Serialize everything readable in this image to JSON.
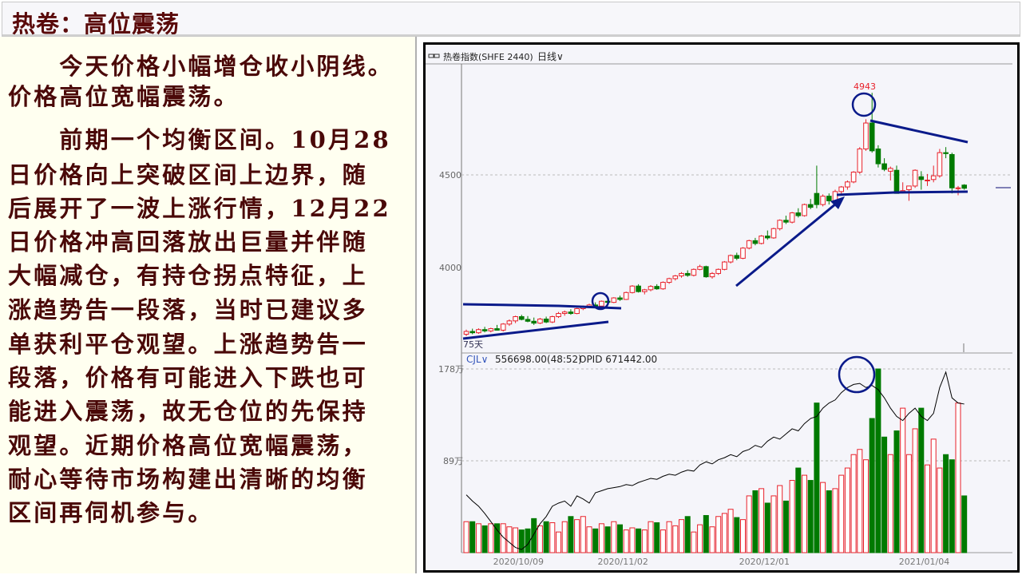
{
  "title": "热卷：高位震荡",
  "paragraphs": [
    {
      "lines": [
        "　　今天价格小幅增仓收小阴线。",
        "价格高位宽幅震荡。"
      ]
    },
    {
      "lines": [
        "　　前期一个均衡区间。10月28",
        "日价格向上突破区间上边界，随",
        "后展开了一波上涨行情，12月22",
        "日价格冲高回落放出巨量并伴随",
        "大幅减仓，有持仓拐点特征，上",
        "涨趋势告一段落，当时已建议多",
        "单获利平仓观望。上涨趋势告一",
        "段落，价格有可能进入下跌也可",
        "能进入震荡，故无仓位的先保持",
        "观望。近期价格高位宽幅震荡，",
        "耐心等待市场构建出清晰的均衡",
        "区间再伺机参与。"
      ]
    }
  ],
  "chart_header": {
    "icon": "link-icon",
    "symbol": "热卷指数(SHFE 2440)",
    "period": "日线∨"
  },
  "volume_header": {
    "indicator": "CJL∨",
    "value": "556698.00(48:52)",
    "opid": "OPID 671442.00"
  },
  "colors": {
    "up": "#e8202a",
    "down": "#007a00",
    "annotation": "#0a1a8a",
    "oi_line": "#000000"
  },
  "chart_data": {
    "type": "candlestick",
    "price_axis": {
      "ticks": [
        {
          "value": 4500,
          "label": "4500"
        },
        {
          "value": 4000,
          "label": "4000"
        }
      ],
      "grid": "dashed at 4500"
    },
    "volume_axis": {
      "ticks": [
        {
          "value": 178,
          "label": "178万"
        },
        {
          "value": 89,
          "label": "89万"
        }
      ],
      "unit": "万"
    },
    "peak_label": "4943",
    "ma_label": "75天",
    "date_labels": [
      {
        "index": 8,
        "label": "2020/10/09"
      },
      {
        "index": 25,
        "label": "2020/11/02"
      },
      {
        "index": 48,
        "label": "2020/12/01"
      },
      {
        "index": 74,
        "label": "2021/01/04"
      }
    ],
    "ohlc": [
      [
        3640,
        3665,
        3630,
        3655
      ],
      [
        3655,
        3670,
        3640,
        3648
      ],
      [
        3648,
        3672,
        3642,
        3665
      ],
      [
        3665,
        3680,
        3650,
        3658
      ],
      [
        3658,
        3675,
        3650,
        3670
      ],
      [
        3670,
        3690,
        3660,
        3662
      ],
      [
        3662,
        3700,
        3655,
        3695
      ],
      [
        3695,
        3720,
        3685,
        3712
      ],
      [
        3712,
        3740,
        3700,
        3735
      ],
      [
        3735,
        3745,
        3715,
        3720
      ],
      [
        3720,
        3738,
        3705,
        3710
      ],
      [
        3710,
        3730,
        3690,
        3700
      ],
      [
        3700,
        3728,
        3695,
        3722
      ],
      [
        3722,
        3735,
        3700,
        3706
      ],
      [
        3706,
        3740,
        3700,
        3735
      ],
      [
        3735,
        3760,
        3728,
        3752
      ],
      [
        3752,
        3768,
        3740,
        3760
      ],
      [
        3760,
        3775,
        3745,
        3752
      ],
      [
        3752,
        3782,
        3748,
        3778
      ],
      [
        3778,
        3795,
        3770,
        3790
      ],
      [
        3790,
        3805,
        3780,
        3798
      ],
      [
        3798,
        3812,
        3785,
        3792
      ],
      [
        3792,
        3822,
        3788,
        3818
      ],
      [
        3818,
        3828,
        3805,
        3812
      ],
      [
        3812,
        3840,
        3808,
        3836
      ],
      [
        3836,
        3848,
        3820,
        3828
      ],
      [
        3828,
        3870,
        3825,
        3865
      ],
      [
        3865,
        3905,
        3860,
        3900
      ],
      [
        3900,
        3910,
        3865,
        3870
      ],
      [
        3870,
        3885,
        3855,
        3880
      ],
      [
        3880,
        3905,
        3872,
        3898
      ],
      [
        3898,
        3910,
        3880,
        3885
      ],
      [
        3885,
        3925,
        3880,
        3920
      ],
      [
        3920,
        3945,
        3912,
        3940
      ],
      [
        3940,
        3960,
        3930,
        3955
      ],
      [
        3955,
        3975,
        3945,
        3968
      ],
      [
        3968,
        3985,
        3950,
        3958
      ],
      [
        3958,
        3995,
        3952,
        3990
      ],
      [
        3990,
        4015,
        3985,
        4005
      ],
      [
        4005,
        4010,
        3945,
        3950
      ],
      [
        3950,
        3975,
        3940,
        3968
      ],
      [
        3968,
        3995,
        3960,
        3990
      ],
      [
        3990,
        4035,
        3985,
        4030
      ],
      [
        4030,
        4070,
        4022,
        4065
      ],
      [
        4065,
        4080,
        4040,
        4050
      ],
      [
        4050,
        4110,
        4045,
        4105
      ],
      [
        4105,
        4150,
        4098,
        4145
      ],
      [
        4145,
        4160,
        4120,
        4130
      ],
      [
        4130,
        4175,
        4125,
        4170
      ],
      [
        4170,
        4200,
        4150,
        4160
      ],
      [
        4160,
        4215,
        4155,
        4210
      ],
      [
        4210,
        4260,
        4200,
        4255
      ],
      [
        4255,
        4280,
        4235,
        4245
      ],
      [
        4245,
        4300,
        4238,
        4295
      ],
      [
        4295,
        4320,
        4270,
        4280
      ],
      [
        4280,
        4345,
        4275,
        4340
      ],
      [
        4340,
        4370,
        4315,
        4325
      ],
      [
        4400,
        4550,
        4320,
        4340
      ],
      [
        4340,
        4395,
        4330,
        4385
      ],
      [
        4385,
        4400,
        4340,
        4360
      ],
      [
        4360,
        4420,
        4350,
        4410
      ],
      [
        4410,
        4440,
        4395,
        4435
      ],
      [
        4435,
        4470,
        4420,
        4462
      ],
      [
        4462,
        4520,
        4455,
        4515
      ],
      [
        4515,
        4650,
        4505,
        4640
      ],
      [
        4640,
        4800,
        4630,
        4780
      ],
      [
        4780,
        4943,
        4620,
        4630
      ],
      [
        4640,
        4660,
        4540,
        4560
      ],
      [
        4560,
        4590,
        4520,
        4530
      ],
      [
        4520,
        4545,
        4470,
        4535
      ],
      [
        4525,
        4550,
        4400,
        4400
      ],
      [
        4410,
        4460,
        4400,
        4415
      ],
      [
        4420,
        4440,
        4360,
        4440
      ],
      [
        4440,
        4530,
        4430,
        4525
      ],
      [
        4490,
        4520,
        4420,
        4475
      ],
      [
        4470,
        4505,
        4440,
        4472
      ],
      [
        4475,
        4550,
        4460,
        4495
      ],
      [
        4495,
        4640,
        4485,
        4620
      ],
      [
        4620,
        4650,
        4590,
        4615
      ],
      [
        4610,
        4620,
        4400,
        4430
      ],
      [
        4430,
        4440,
        4390,
        4430
      ],
      [
        4445,
        4450,
        4420,
        4428
      ]
    ],
    "volume": [
      30,
      30,
      28,
      26,
      28,
      28,
      28,
      25,
      24,
      22,
      23,
      33,
      26,
      30,
      29,
      20,
      30,
      35,
      32,
      35,
      25,
      23,
      28,
      25,
      30,
      27,
      22,
      24,
      23,
      22,
      30,
      29,
      22,
      30,
      26,
      32,
      35,
      20,
      27,
      36,
      25,
      35,
      38,
      42,
      34,
      32,
      55,
      60,
      62,
      48,
      55,
      65,
      50,
      70,
      82,
      75,
      70,
      145,
      68,
      60,
      62,
      75,
      82,
      95,
      100,
      90,
      130,
      178,
      112,
      95,
      118,
      140,
      95,
      120,
      140,
      85,
      110,
      82,
      95,
      90,
      145,
      55
    ],
    "open_interest": [
      56,
      50,
      45,
      38,
      30,
      22,
      15,
      10,
      5,
      3,
      8,
      18,
      28,
      35,
      45,
      48,
      50,
      45,
      55,
      52,
      48,
      58,
      60,
      62,
      63,
      64,
      66,
      65,
      68,
      70,
      72,
      71,
      74,
      76,
      75,
      78,
      80,
      79,
      85,
      88,
      86,
      90,
      92,
      95,
      93,
      98,
      100,
      104,
      102,
      108,
      112,
      110,
      115,
      120,
      118,
      125,
      130,
      132,
      140,
      145,
      148,
      155,
      160,
      163,
      164,
      160,
      162,
      158,
      150,
      140,
      132,
      128,
      135,
      140,
      132,
      128,
      135,
      160,
      175,
      150,
      145,
      144
    ]
  }
}
